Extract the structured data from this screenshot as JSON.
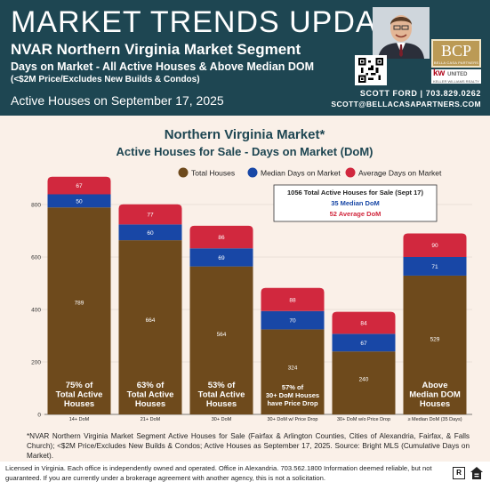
{
  "header": {
    "title": "MARKET TRENDS UPDATE",
    "subtitle": "NVAR Northern Virginia Market Segment",
    "subtitle2": "Days on Market - All Active Houses & Above Median DOM",
    "subtitle3": "(<$2M Price/Excludes New Builds & Condos)",
    "date_line": "Active Houses on September 17, 2025",
    "agent_name": "SCOTT FORD | 703.829.0262",
    "agent_email": "SCOTT@BELLACASAPARTNERS.COM",
    "logo_bcp": "BCP",
    "logo_bcp_sub": "BELLA CASA PARTNERS",
    "logo_kw": "kw",
    "logo_kw_word": "UNITED",
    "logo_kw_sub": "KELLER WILLIAMS REALTY"
  },
  "chart_data": {
    "type": "bar",
    "title": "Northern Virginia Market*",
    "subtitle": "Active Houses for Sale - Days on Market (DoM)",
    "categories": [
      "14+ DoM",
      "21+ DoM",
      "30+ DoM",
      "30+ DoM w/ Price Drop",
      "30+ DoM w/o Price Drop",
      "≥ Median DoM (35 Days)"
    ],
    "series": [
      {
        "name": "Total Houses",
        "color": "#6e4a1c",
        "values": [
          789,
          664,
          564,
          324,
          240,
          529
        ]
      },
      {
        "name": "Median Days on Market",
        "color": "#1847a6",
        "values": [
          50,
          60,
          69,
          70,
          67,
          71
        ]
      },
      {
        "name": "Average Days on Market",
        "color": "#d1283e",
        "values": [
          67,
          77,
          86,
          88,
          84,
          90
        ]
      }
    ],
    "bar_labels": [
      [
        "75% of",
        "Total Active",
        "Houses"
      ],
      [
        "63% of",
        "Total Active",
        "Houses"
      ],
      [
        "53% of",
        "Total Active",
        "Houses"
      ],
      [
        "57% of",
        "30+ DoM Houses",
        "have Price Drop"
      ],
      [],
      [
        "Above",
        "Median DOM",
        "Houses"
      ]
    ],
    "y_ticks": [
      0,
      200,
      400,
      600,
      800
    ],
    "ylim": [
      0,
      900
    ],
    "grid": true,
    "legend": "top-right",
    "annotation": {
      "line1": "1056 Total Active Houses for Sale (Sept 17)",
      "line2": "35 Median DoM",
      "line3": "52 Average DoM"
    }
  },
  "footnote": "*NVAR Northern Virginia Market Segment Active Houses for Sale (Fairfax & Arlington Counties, Cities of Alexandria, Fairfax, & Falls Church); <$2M Price/Excludes New Builds & Condos; Active Houses as September 17, 2025.  Source: Bright MLS (Cumulative Days on Market).",
  "disclaimer": "Licensed in Virginia. Each office is independently owned and operated. Office in Alexandria. 703.562.1800  Information deemed reliable, but not guaranteed. If you are currently under a brokerage agreement with another agency, this is not a solicitation.",
  "icons": {
    "realtor": "realtor-r-icon",
    "equal_housing": "equal-housing-icon"
  }
}
